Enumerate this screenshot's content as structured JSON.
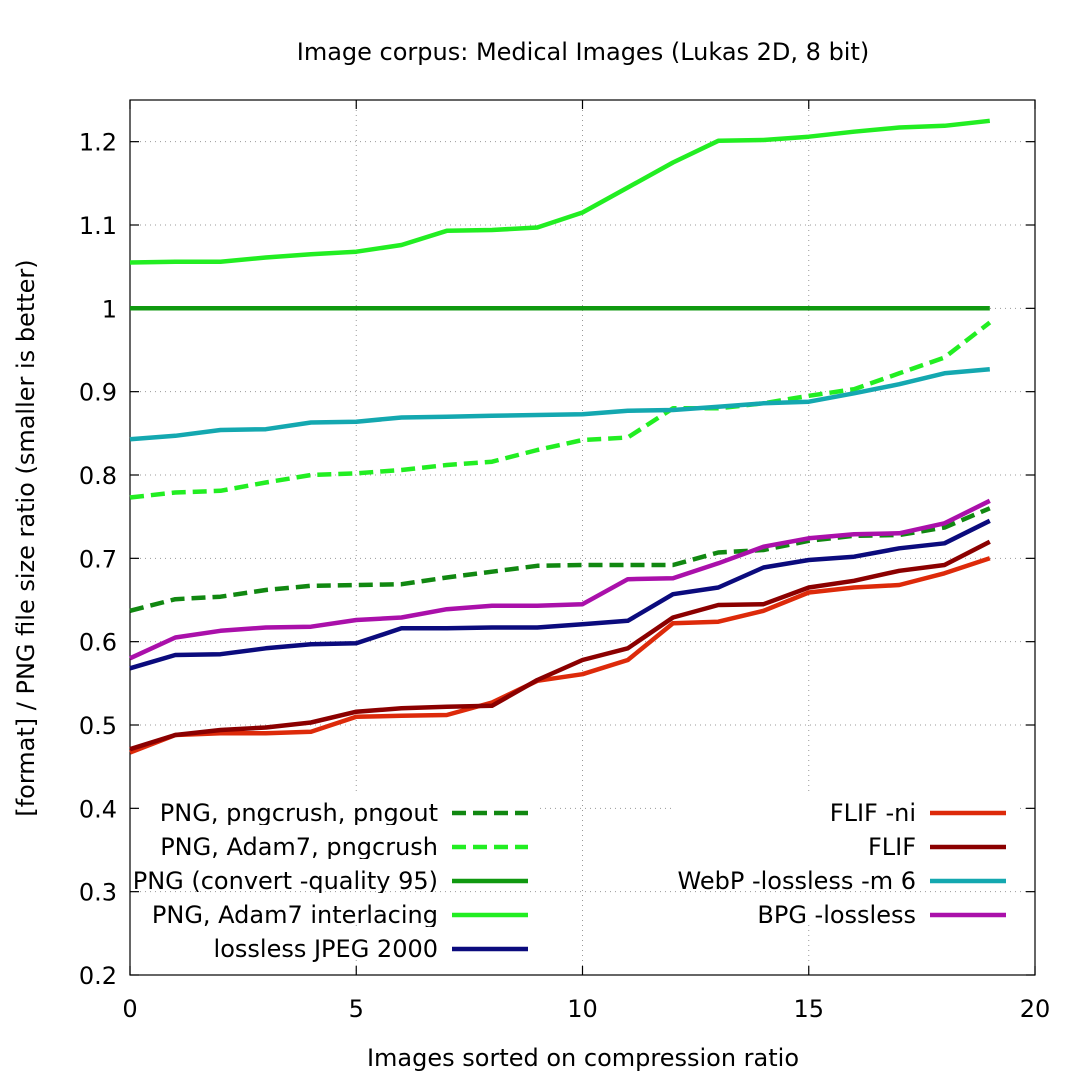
{
  "chart_data": {
    "type": "line",
    "title": "Image corpus: Medical Images (Lukas 2D, 8 bit)",
    "xlabel": "Images sorted on compression ratio",
    "ylabel": "[format] / PNG file size ratio (smaller is better)",
    "xlim": [
      0,
      20
    ],
    "ylim": [
      0.2,
      1.25
    ],
    "xticks": [
      "0",
      "5",
      "10",
      "15",
      "20"
    ],
    "yticks": [
      "0.2",
      "0.3",
      "0.4",
      "0.5",
      "0.6",
      "0.7",
      "0.8",
      "0.9",
      "1",
      "1.1",
      "1.2"
    ],
    "grid": true,
    "legend_left": "bottom-left",
    "legend_right": "bottom-right",
    "series": [
      {
        "name": "PNG, pngcrush, pngout",
        "color": "#118811",
        "dash": "dashed",
        "legend": "left",
        "x": [
          0,
          1,
          2,
          3,
          4,
          5,
          6,
          7,
          8,
          9,
          10,
          11,
          12,
          13,
          14,
          15,
          16,
          17,
          18,
          19
        ],
        "values": [
          0.637,
          0.651,
          0.654,
          0.662,
          0.667,
          0.668,
          0.669,
          0.677,
          0.684,
          0.691,
          0.692,
          0.692,
          0.692,
          0.707,
          0.71,
          0.721,
          0.727,
          0.728,
          0.737,
          0.76
        ]
      },
      {
        "name": "PNG, Adam7, pngcrush",
        "color": "#22ee22",
        "dash": "dashed",
        "legend": "left",
        "x": [
          0,
          1,
          2,
          3,
          4,
          5,
          6,
          7,
          8,
          9,
          10,
          11,
          12,
          13,
          14,
          15,
          16,
          17,
          18,
          19
        ],
        "values": [
          0.773,
          0.779,
          0.781,
          0.791,
          0.8,
          0.802,
          0.806,
          0.812,
          0.816,
          0.83,
          0.842,
          0.845,
          0.88,
          0.88,
          0.886,
          0.895,
          0.903,
          0.922,
          0.941,
          0.983
        ]
      },
      {
        "name": "PNG (convert -quality 95)",
        "color": "#109910",
        "dash": "solid",
        "legend": "left",
        "x": [
          0,
          19
        ],
        "values": [
          1.0,
          1.0
        ]
      },
      {
        "name": "PNG, Adam7 interlacing",
        "color": "#22ee22",
        "dash": "solid",
        "legend": "left",
        "x": [
          0,
          1,
          2,
          3,
          4,
          5,
          6,
          7,
          8,
          9,
          10,
          11,
          12,
          13,
          14,
          15,
          16,
          17,
          18,
          19
        ],
        "values": [
          1.055,
          1.056,
          1.056,
          1.061,
          1.065,
          1.068,
          1.076,
          1.093,
          1.094,
          1.097,
          1.115,
          1.145,
          1.175,
          1.201,
          1.202,
          1.206,
          1.212,
          1.217,
          1.219,
          1.225
        ]
      },
      {
        "name": "lossless JPEG 2000",
        "color": "#0b0b7d",
        "dash": "solid",
        "legend": "left",
        "x": [
          0,
          1,
          2,
          3,
          4,
          5,
          6,
          7,
          8,
          9,
          10,
          11,
          12,
          13,
          14,
          15,
          16,
          17,
          18,
          19
        ],
        "values": [
          0.568,
          0.584,
          0.585,
          0.592,
          0.597,
          0.598,
          0.616,
          0.616,
          0.617,
          0.617,
          0.621,
          0.625,
          0.657,
          0.665,
          0.689,
          0.698,
          0.702,
          0.712,
          0.718,
          0.745
        ]
      },
      {
        "name": "FLIF -ni",
        "color": "#dd2a0a",
        "dash": "solid",
        "legend": "right",
        "x": [
          0,
          1,
          2,
          3,
          4,
          5,
          6,
          7,
          8,
          9,
          10,
          11,
          12,
          13,
          14,
          15,
          16,
          17,
          18,
          19
        ],
        "values": [
          0.467,
          0.488,
          0.49,
          0.49,
          0.492,
          0.51,
          0.511,
          0.512,
          0.527,
          0.553,
          0.561,
          0.578,
          0.622,
          0.624,
          0.637,
          0.659,
          0.665,
          0.668,
          0.682,
          0.7
        ]
      },
      {
        "name": "FLIF",
        "color": "#8b0000",
        "dash": "solid",
        "legend": "right",
        "x": [
          0,
          1,
          2,
          3,
          4,
          5,
          6,
          7,
          8,
          9,
          10,
          11,
          12,
          13,
          14,
          15,
          16,
          17,
          18,
          19
        ],
        "values": [
          0.471,
          0.488,
          0.494,
          0.497,
          0.503,
          0.516,
          0.52,
          0.522,
          0.523,
          0.554,
          0.578,
          0.592,
          0.629,
          0.644,
          0.645,
          0.665,
          0.673,
          0.685,
          0.692,
          0.72
        ]
      },
      {
        "name": "WebP -lossless -m 6",
        "color": "#14a8b0",
        "dash": "solid",
        "legend": "right",
        "x": [
          0,
          1,
          2,
          3,
          4,
          5,
          6,
          7,
          8,
          9,
          10,
          11,
          12,
          13,
          14,
          15,
          16,
          17,
          18,
          19
        ],
        "values": [
          0.843,
          0.847,
          0.854,
          0.855,
          0.863,
          0.864,
          0.869,
          0.87,
          0.871,
          0.872,
          0.873,
          0.877,
          0.878,
          0.882,
          0.886,
          0.888,
          0.898,
          0.909,
          0.922,
          0.927
        ]
      },
      {
        "name": "BPG -lossless",
        "color": "#aa10aa",
        "dash": "solid",
        "legend": "right",
        "x": [
          0,
          1,
          2,
          3,
          4,
          5,
          6,
          7,
          8,
          9,
          10,
          11,
          12,
          13,
          14,
          15,
          16,
          17,
          18,
          19
        ],
        "values": [
          0.58,
          0.605,
          0.613,
          0.617,
          0.618,
          0.626,
          0.629,
          0.639,
          0.643,
          0.643,
          0.645,
          0.675,
          0.676,
          0.694,
          0.714,
          0.724,
          0.729,
          0.73,
          0.742,
          0.769
        ]
      }
    ]
  }
}
